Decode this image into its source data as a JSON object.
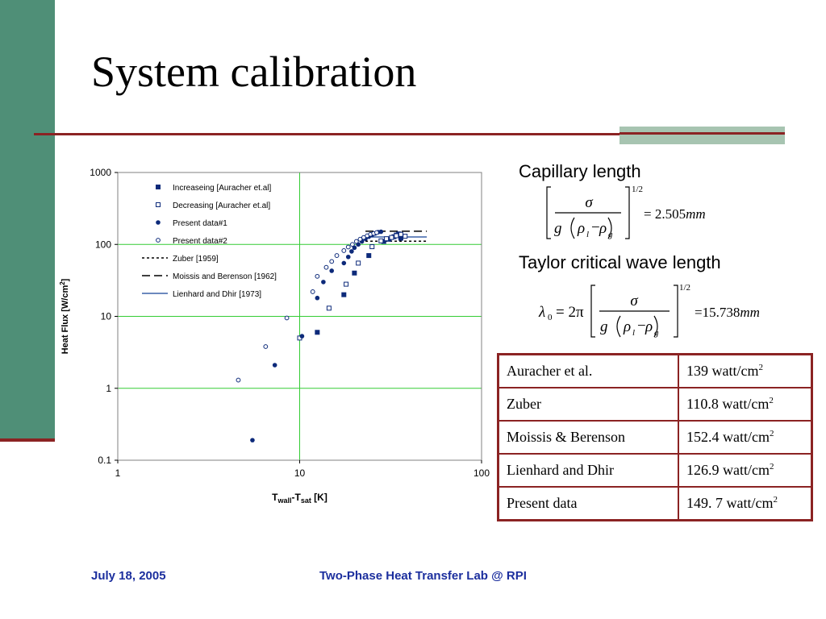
{
  "slide": {
    "title": "System calibration",
    "footer_left": "July 18, 2005",
    "footer_center": "Two-Phase Heat Transfer Lab @ RPI"
  },
  "formulas": {
    "capillary_label": "Capillary length",
    "capillary_value": "= 2.505",
    "capillary_unit": "mm",
    "taylor_label": "Taylor critical wave length",
    "taylor_value": "=15.738",
    "taylor_unit": "mm",
    "exponent": "1/2"
  },
  "table": {
    "rows": [
      {
        "source": "Auracher et al.",
        "value": "139 watt/cm"
      },
      {
        "source": "Zuber",
        "value": "110.8 watt/cm"
      },
      {
        "source": "Moissis & Berenson",
        "value": "152.4 watt/cm"
      },
      {
        "source": "Lienhard and Dhir",
        "value": "126.9 watt/cm"
      },
      {
        "source": "Present data",
        "value": "149. 7 watt/cm"
      }
    ],
    "unit_superscript": "2"
  },
  "chart_data": {
    "type": "scatter",
    "xscale": "log",
    "yscale": "log",
    "xlim": [
      1,
      100
    ],
    "ylim": [
      0.1,
      1000
    ],
    "xticks": [
      "1",
      "10",
      "100"
    ],
    "yticks": [
      "0.1",
      "1",
      "10",
      "100",
      "1000"
    ],
    "xlabel": "T",
    "xlabel_sub1": "wall",
    "xlabel_mid": "-T",
    "xlabel_sub2": "sat",
    "xlabel_unit": " [K]",
    "ylabel": "Heat Flux [W/cm",
    "ylabel_sup": "2",
    "ylabel_end": "]",
    "grid": true,
    "grid_color": "#33cc33",
    "marker_color": "#0d2a7a",
    "legend_position": "top-left",
    "series": [
      {
        "name": "Increaseing [Auracher et.al]",
        "marker": "filled-square",
        "points": [
          [
            12.5,
            6
          ],
          [
            17.5,
            20
          ],
          [
            20,
            40
          ],
          [
            24,
            70
          ],
          [
            29,
            110
          ],
          [
            31,
            118
          ],
          [
            33,
            128
          ],
          [
            34,
            135
          ],
          [
            35,
            140
          ],
          [
            36,
            122
          ]
        ]
      },
      {
        "name": "Decreasing [Auracher et.al]",
        "marker": "open-square",
        "points": [
          [
            10,
            5
          ],
          [
            14.5,
            13
          ],
          [
            18,
            28
          ],
          [
            21,
            55
          ],
          [
            25,
            93
          ],
          [
            28,
            112
          ],
          [
            30,
            120
          ],
          [
            32,
            125
          ],
          [
            34,
            132
          ],
          [
            36,
            138
          ],
          [
            38,
            130
          ]
        ]
      },
      {
        "name": "Present data#1",
        "marker": "filled-circle",
        "points": [
          [
            5.5,
            0.19
          ],
          [
            7.3,
            2.1
          ],
          [
            10.3,
            5.3
          ],
          [
            12.5,
            18
          ],
          [
            13.5,
            30
          ],
          [
            15,
            43
          ],
          [
            17.5,
            55
          ],
          [
            18.5,
            67
          ],
          [
            19.3,
            80
          ],
          [
            20,
            90
          ],
          [
            21,
            100
          ],
          [
            22,
            110
          ],
          [
            23,
            120
          ],
          [
            24,
            128
          ],
          [
            25,
            135
          ],
          [
            26,
            142
          ],
          [
            27,
            148
          ],
          [
            28,
            150
          ]
        ]
      },
      {
        "name": "Present data#2",
        "marker": "open-circle",
        "points": [
          [
            4.6,
            1.3
          ],
          [
            6.5,
            3.8
          ],
          [
            8.5,
            9.5
          ],
          [
            11.8,
            22
          ],
          [
            12.5,
            36
          ],
          [
            14,
            48
          ],
          [
            15,
            58
          ],
          [
            16,
            70
          ],
          [
            17.5,
            82
          ],
          [
            18.5,
            92
          ],
          [
            19.5,
            100
          ],
          [
            20.5,
            110
          ],
          [
            21.5,
            118
          ],
          [
            22.5,
            125
          ],
          [
            23.5,
            132
          ],
          [
            24.5,
            138
          ],
          [
            25.5,
            142
          ],
          [
            26.5,
            146
          ]
        ]
      },
      {
        "name": "Zuber [1959]",
        "marker": "dotted-line",
        "points": [
          [
            23,
            110.8
          ],
          [
            50,
            110.8
          ]
        ]
      },
      {
        "name": "Moissis and Berenson [1962]",
        "marker": "dashed-line",
        "points": [
          [
            23,
            152.4
          ],
          [
            50,
            152.4
          ]
        ]
      },
      {
        "name": "Lienhard and Dhir [1973]",
        "marker": "solid-line",
        "points": [
          [
            23,
            126.9
          ],
          [
            50,
            126.9
          ]
        ]
      }
    ]
  }
}
